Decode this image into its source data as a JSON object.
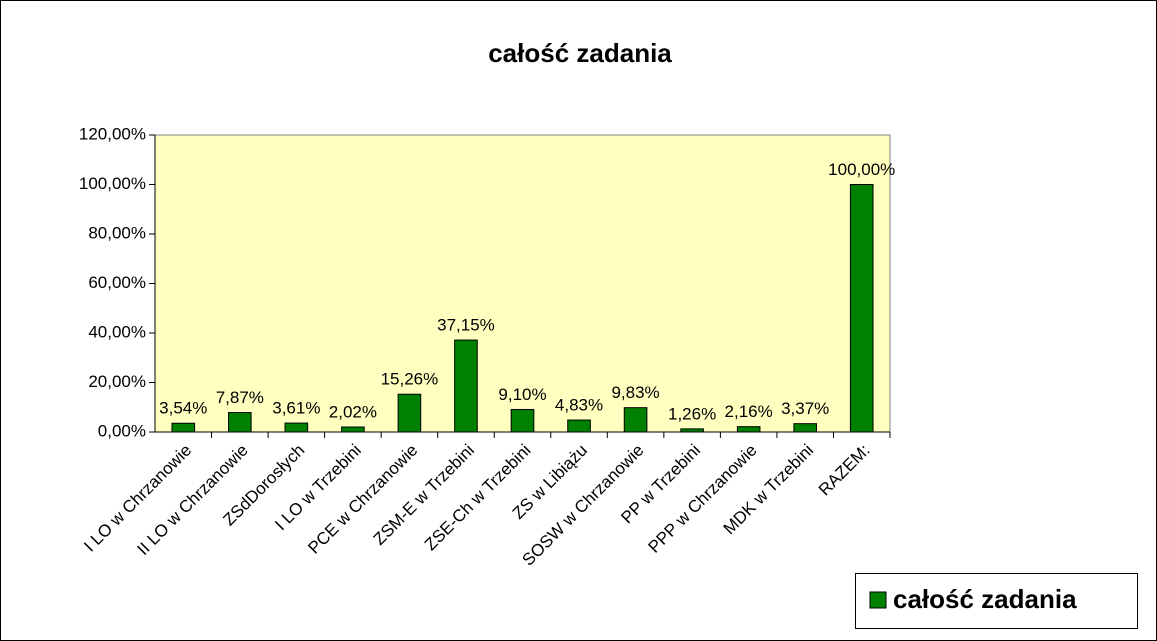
{
  "chart_data": {
    "type": "bar",
    "title": "całość zadania",
    "categories": [
      "I LO w Chrzanowie",
      "II LO w Chrzanowie",
      "ZSdDorosłych",
      "I LO w Trzebini",
      "PCE w Chrzanowie",
      "ZSM-E  w Trzebini",
      "ZSE-Ch w Trzebini",
      "ZS w Libiążu",
      "SOSW w Chrzanowie",
      "PP w Trzebini",
      "PPP w Chrzanowie",
      "MDK w Trzebini",
      "RAZEM:"
    ],
    "series": [
      {
        "name": "całość zadania",
        "color": "#008000",
        "values": [
          3.54,
          7.87,
          3.61,
          2.02,
          15.26,
          37.15,
          9.1,
          4.83,
          9.83,
          1.26,
          2.16,
          3.37,
          100.0
        ],
        "value_labels": [
          "3,54%",
          "7,87%",
          "3,61%",
          "2,02%",
          "15,26%",
          "37,15%",
          "9,10%",
          "4,83%",
          "9,83%",
          "1,26%",
          "2,16%",
          "3,37%",
          "100,00%"
        ]
      }
    ],
    "ylim": [
      0,
      120
    ],
    "yticks": [
      {
        "value": 0,
        "label": "0,00%"
      },
      {
        "value": 20,
        "label": "20,00%"
      },
      {
        "value": 40,
        "label": "40,00%"
      },
      {
        "value": 60,
        "label": "60,00%"
      },
      {
        "value": 80,
        "label": "80,00%"
      },
      {
        "value": 100,
        "label": "100,00%"
      },
      {
        "value": 120,
        "label": "120,00%"
      }
    ],
    "legend": "bottom-right",
    "plot_background": "#ffffc0"
  }
}
